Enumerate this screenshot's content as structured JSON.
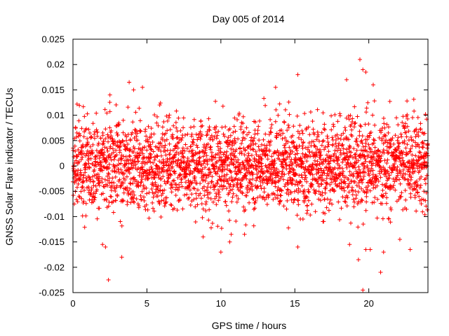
{
  "chart_data": {
    "type": "scatter",
    "title": "Day 005 of 2014",
    "xlabel": "GPS time / hours",
    "ylabel": "GNSS Solar Flare indicator / TECUs",
    "xlim": [
      0,
      24
    ],
    "ylim": [
      -0.025,
      0.025
    ],
    "x_ticks": [
      0,
      5,
      10,
      15,
      20
    ],
    "x_tick_labels": [
      "0",
      "5",
      "10",
      "15",
      "20"
    ],
    "y_ticks": [
      -0.025,
      -0.02,
      -0.015,
      -0.01,
      -0.005,
      0,
      0.005,
      0.01,
      0.015,
      0.02,
      0.025
    ],
    "y_tick_labels": [
      "-0.025",
      "-0.02",
      "-0.015",
      "-0.01",
      "-0.005",
      "0",
      "0.005",
      "0.01",
      "0.015",
      "0.02",
      "0.025"
    ],
    "marker": "+",
    "marker_color": "#ff0000",
    "grid": false,
    "legend": "none",
    "series": [
      {
        "name": "indicator",
        "n_points": 2880,
        "sampling_interval_hours": 0.00833,
        "typical_spread_sd": 0.0045,
        "outliers": [
          {
            "x": 19.4,
            "y": 0.021
          },
          {
            "x": 19.6,
            "y": 0.019
          },
          {
            "x": 19.8,
            "y": 0.0185
          },
          {
            "x": 15.2,
            "y": 0.018
          },
          {
            "x": 3.8,
            "y": 0.0165
          },
          {
            "x": 4.1,
            "y": 0.015
          },
          {
            "x": 4.7,
            "y": 0.0155
          },
          {
            "x": 13.7,
            "y": 0.0155
          },
          {
            "x": 2.5,
            "y": 0.014
          },
          {
            "x": 18.5,
            "y": 0.017
          },
          {
            "x": 20.3,
            "y": 0.016
          },
          {
            "x": 2.4,
            "y": -0.0225
          },
          {
            "x": 19.6,
            "y": -0.0245
          },
          {
            "x": 20.8,
            "y": -0.021
          },
          {
            "x": 3.3,
            "y": -0.018
          },
          {
            "x": 2.0,
            "y": -0.0155
          },
          {
            "x": 2.2,
            "y": -0.016
          },
          {
            "x": 10.0,
            "y": -0.017
          },
          {
            "x": 15.2,
            "y": -0.016
          },
          {
            "x": 19.3,
            "y": -0.0185
          },
          {
            "x": 19.8,
            "y": -0.0165
          },
          {
            "x": 20.1,
            "y": -0.0165
          },
          {
            "x": 21.0,
            "y": -0.017
          },
          {
            "x": 22.8,
            "y": -0.0165
          },
          {
            "x": 8.8,
            "y": -0.014
          },
          {
            "x": 10.6,
            "y": -0.015
          },
          {
            "x": 10.7,
            "y": -0.0135
          },
          {
            "x": 11.6,
            "y": -0.0135
          },
          {
            "x": 18.7,
            "y": -0.0155
          },
          {
            "x": 22.1,
            "y": -0.0145
          }
        ]
      }
    ]
  }
}
